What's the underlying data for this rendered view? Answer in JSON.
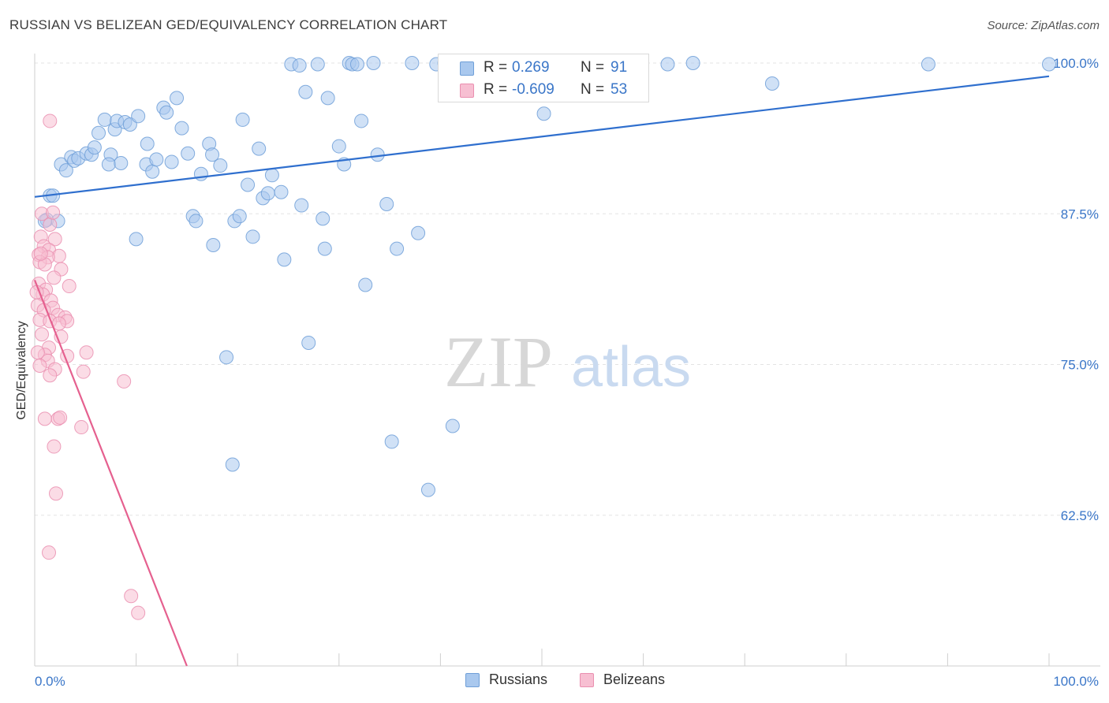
{
  "title": "RUSSIAN VS BELIZEAN GED/EQUIVALENCY CORRELATION CHART",
  "source": "Source: ZipAtlas.com",
  "watermark": {
    "zip": "ZIP",
    "atlas": "atlas"
  },
  "legend_top": {
    "rows": [
      {
        "r_label": "R =",
        "r_value": "0.269",
        "n_label": "N =",
        "n_value": "91"
      },
      {
        "r_label": "R =",
        "r_value": "-0.609",
        "n_label": "N =",
        "n_value": "53"
      }
    ]
  },
  "legend_bottom": {
    "russians": "Russians",
    "belizeans": "Belizeans"
  },
  "colors": {
    "russians_fill": "#a9c8ee",
    "russians_stroke": "#6f9fd8",
    "russians_line": "#2f6fce",
    "belizeans_fill": "#f7bfd2",
    "belizeans_stroke": "#ea8fb0",
    "belizeans_line": "#e5608f",
    "tick_label": "#3a76c8",
    "grid": "#e3e3e3"
  },
  "chart_data": {
    "type": "scatter",
    "title": "RUSSIAN VS BELIZEAN GED/EQUIVALENCY CORRELATION CHART",
    "xlabel": "",
    "ylabel": "GED/Equivalency",
    "xlim": [
      0,
      100
    ],
    "ylim": [
      50,
      100
    ],
    "x_tick_labels": [
      "0.0%",
      "100.0%"
    ],
    "y_ticks": [
      62.5,
      75.0,
      87.5,
      100.0
    ],
    "y_tick_labels": [
      "62.5%",
      "75.0%",
      "87.5%",
      "100.0%"
    ],
    "series": [
      {
        "name": "Russians",
        "r": 0.269,
        "n": 91,
        "trend": {
          "x": [
            0,
            100
          ],
          "y": [
            88.9,
            98.9
          ]
        },
        "points": [
          [
            1.5,
            89.0
          ],
          [
            1.8,
            89.0
          ],
          [
            1.2,
            87.0
          ],
          [
            2.3,
            86.9
          ],
          [
            1.0,
            86.9
          ],
          [
            2.6,
            91.6
          ],
          [
            3.1,
            91.1
          ],
          [
            3.6,
            92.2
          ],
          [
            3.9,
            91.9
          ],
          [
            4.3,
            92.1
          ],
          [
            5.1,
            92.5
          ],
          [
            5.6,
            92.4
          ],
          [
            5.9,
            93.0
          ],
          [
            6.3,
            94.2
          ],
          [
            6.9,
            95.3
          ],
          [
            7.5,
            92.4
          ],
          [
            7.3,
            91.6
          ],
          [
            7.9,
            94.5
          ],
          [
            8.1,
            95.2
          ],
          [
            8.5,
            91.7
          ],
          [
            8.9,
            95.1
          ],
          [
            9.4,
            94.9
          ],
          [
            10.2,
            95.6
          ],
          [
            10.0,
            85.4
          ],
          [
            11.1,
            93.3
          ],
          [
            11.0,
            91.6
          ],
          [
            11.6,
            91.0
          ],
          [
            12.0,
            92.0
          ],
          [
            12.7,
            96.3
          ],
          [
            13.0,
            95.9
          ],
          [
            13.5,
            91.8
          ],
          [
            14.0,
            97.1
          ],
          [
            14.5,
            94.6
          ],
          [
            15.1,
            92.5
          ],
          [
            15.6,
            87.3
          ],
          [
            15.9,
            86.9
          ],
          [
            16.4,
            90.8
          ],
          [
            17.2,
            93.3
          ],
          [
            17.5,
            92.4
          ],
          [
            17.6,
            84.9
          ],
          [
            18.3,
            91.5
          ],
          [
            18.9,
            75.6
          ],
          [
            19.5,
            66.7
          ],
          [
            19.7,
            86.9
          ],
          [
            20.2,
            87.3
          ],
          [
            20.5,
            95.3
          ],
          [
            21.0,
            89.9
          ],
          [
            21.5,
            85.6
          ],
          [
            22.1,
            92.9
          ],
          [
            22.5,
            88.8
          ],
          [
            23.0,
            89.2
          ],
          [
            23.4,
            90.7
          ],
          [
            24.3,
            89.3
          ],
          [
            24.6,
            83.7
          ],
          [
            25.3,
            99.9
          ],
          [
            26.1,
            99.8
          ],
          [
            26.3,
            88.2
          ],
          [
            26.7,
            97.6
          ],
          [
            27.0,
            76.8
          ],
          [
            27.9,
            99.9
          ],
          [
            28.4,
            87.1
          ],
          [
            28.6,
            84.6
          ],
          [
            28.9,
            97.1
          ],
          [
            30.0,
            93.1
          ],
          [
            30.5,
            91.6
          ],
          [
            31.0,
            100.0
          ],
          [
            31.3,
            99.9
          ],
          [
            31.8,
            99.9
          ],
          [
            32.2,
            95.2
          ],
          [
            32.6,
            81.6
          ],
          [
            33.4,
            100.0
          ],
          [
            33.8,
            92.4
          ],
          [
            34.7,
            88.3
          ],
          [
            35.2,
            68.6
          ],
          [
            35.7,
            84.6
          ],
          [
            37.2,
            100.0
          ],
          [
            37.8,
            85.9
          ],
          [
            38.8,
            64.6
          ],
          [
            39.6,
            99.9
          ],
          [
            40.4,
            100.0
          ],
          [
            41.2,
            69.9
          ],
          [
            48.0,
            99.9
          ],
          [
            50.2,
            95.8
          ],
          [
            51.0,
            100.0
          ],
          [
            51.4,
            99.9
          ],
          [
            59.5,
            100.0
          ],
          [
            62.4,
            99.9
          ],
          [
            64.9,
            100.0
          ],
          [
            72.7,
            98.3
          ],
          [
            88.1,
            99.9
          ],
          [
            100.0,
            99.9
          ]
        ]
      },
      {
        "name": "Belizeans",
        "r": -0.609,
        "n": 53,
        "trend": {
          "x": [
            0,
            15.0
          ],
          "y": [
            82.0,
            50.0
          ]
        },
        "points": [
          [
            0.7,
            87.5
          ],
          [
            1.5,
            86.6
          ],
          [
            0.6,
            85.6
          ],
          [
            2.0,
            85.4
          ],
          [
            0.9,
            84.8
          ],
          [
            1.4,
            84.5
          ],
          [
            0.4,
            84.1
          ],
          [
            2.4,
            84.0
          ],
          [
            1.3,
            83.9
          ],
          [
            0.5,
            83.5
          ],
          [
            1.0,
            83.3
          ],
          [
            2.6,
            82.9
          ],
          [
            1.9,
            82.2
          ],
          [
            0.4,
            81.7
          ],
          [
            3.4,
            81.5
          ],
          [
            1.1,
            81.2
          ],
          [
            0.8,
            80.8
          ],
          [
            1.6,
            80.3
          ],
          [
            0.3,
            79.9
          ],
          [
            1.8,
            79.7
          ],
          [
            0.9,
            79.5
          ],
          [
            2.3,
            79.1
          ],
          [
            3.0,
            78.9
          ],
          [
            0.5,
            78.7
          ],
          [
            1.5,
            78.6
          ],
          [
            3.2,
            78.6
          ],
          [
            2.4,
            78.4
          ],
          [
            0.7,
            77.5
          ],
          [
            2.6,
            77.3
          ],
          [
            1.4,
            76.4
          ],
          [
            1.0,
            75.8
          ],
          [
            3.2,
            75.7
          ],
          [
            5.1,
            76.0
          ],
          [
            1.3,
            75.3
          ],
          [
            0.5,
            74.9
          ],
          [
            2.0,
            74.6
          ],
          [
            4.8,
            74.4
          ],
          [
            1.5,
            74.1
          ],
          [
            8.8,
            73.6
          ],
          [
            1.0,
            70.5
          ],
          [
            2.3,
            70.5
          ],
          [
            2.5,
            70.6
          ],
          [
            4.6,
            69.8
          ],
          [
            1.9,
            68.2
          ],
          [
            2.1,
            64.3
          ],
          [
            1.4,
            59.4
          ],
          [
            9.5,
            55.8
          ],
          [
            10.2,
            54.4
          ],
          [
            1.5,
            95.2
          ],
          [
            0.2,
            81.0
          ],
          [
            0.3,
            76.0
          ],
          [
            0.6,
            84.2
          ],
          [
            1.8,
            87.6
          ]
        ]
      }
    ]
  }
}
